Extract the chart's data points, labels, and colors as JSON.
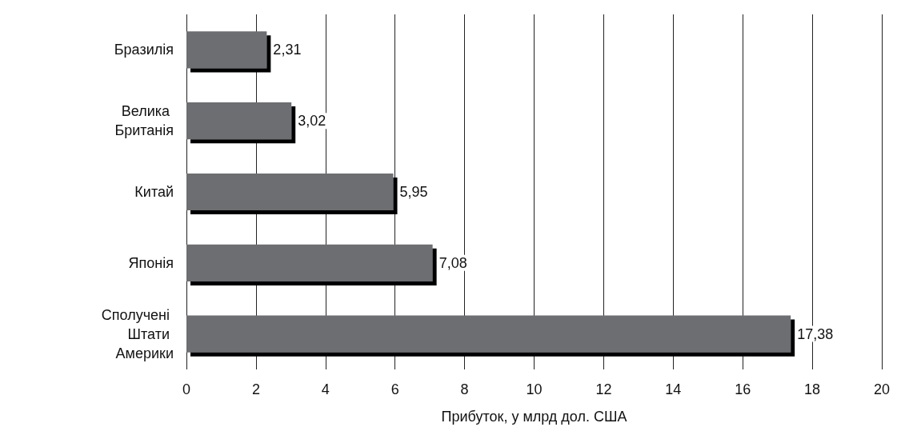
{
  "chart_data": {
    "type": "bar",
    "orientation": "horizontal",
    "categories": [
      "Бразилія",
      "Велика Британія",
      "Китай",
      "Японія",
      "Сполучені Штати Америки"
    ],
    "values": [
      2.31,
      3.02,
      5.95,
      7.08,
      17.38
    ],
    "value_labels": [
      "2,31",
      "3,02",
      "5,95",
      "7,08",
      "17,38"
    ],
    "color": "#6d6e71",
    "xlabel": "Прибуток, у млрд дол. США",
    "xlim": [
      0,
      20
    ],
    "xticks": [
      0,
      2,
      4,
      6,
      8,
      10,
      12,
      14,
      16,
      18,
      20
    ],
    "grid": "x"
  }
}
